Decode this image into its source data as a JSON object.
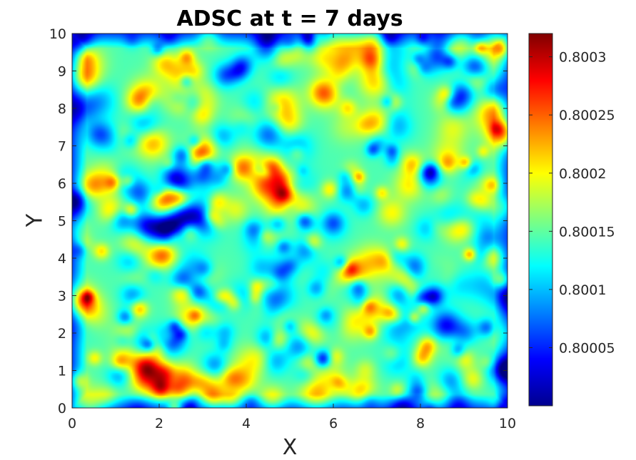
{
  "chart_data": {
    "type": "heatmap",
    "title": "ADSC at t = 7 days",
    "xlabel": "X",
    "ylabel": "Y",
    "xlim": [
      0,
      10
    ],
    "ylim": [
      0,
      10
    ],
    "xticks": [
      "0",
      "2",
      "4",
      "6",
      "8",
      "10"
    ],
    "yticks": [
      "0",
      "1",
      "2",
      "3",
      "4",
      "5",
      "6",
      "7",
      "8",
      "9",
      "10"
    ],
    "colormap": "jet",
    "colorbar": {
      "range": [
        0.8,
        0.80032
      ],
      "ticks": [
        {
          "value": 0.80005,
          "label": "0.80005"
        },
        {
          "value": 0.8001,
          "label": "0.8001"
        },
        {
          "value": 0.80015,
          "label": "0.80015"
        },
        {
          "value": 0.8002,
          "label": "0.8002"
        },
        {
          "value": 0.80025,
          "label": "0.80025"
        },
        {
          "value": 0.8003,
          "label": "0.8003"
        }
      ]
    },
    "field_description": "spatially random concentration field with small hot spots (values ~0.80025-0.80032) scattered over a background of ~0.80012-0.80018",
    "grid": false
  }
}
